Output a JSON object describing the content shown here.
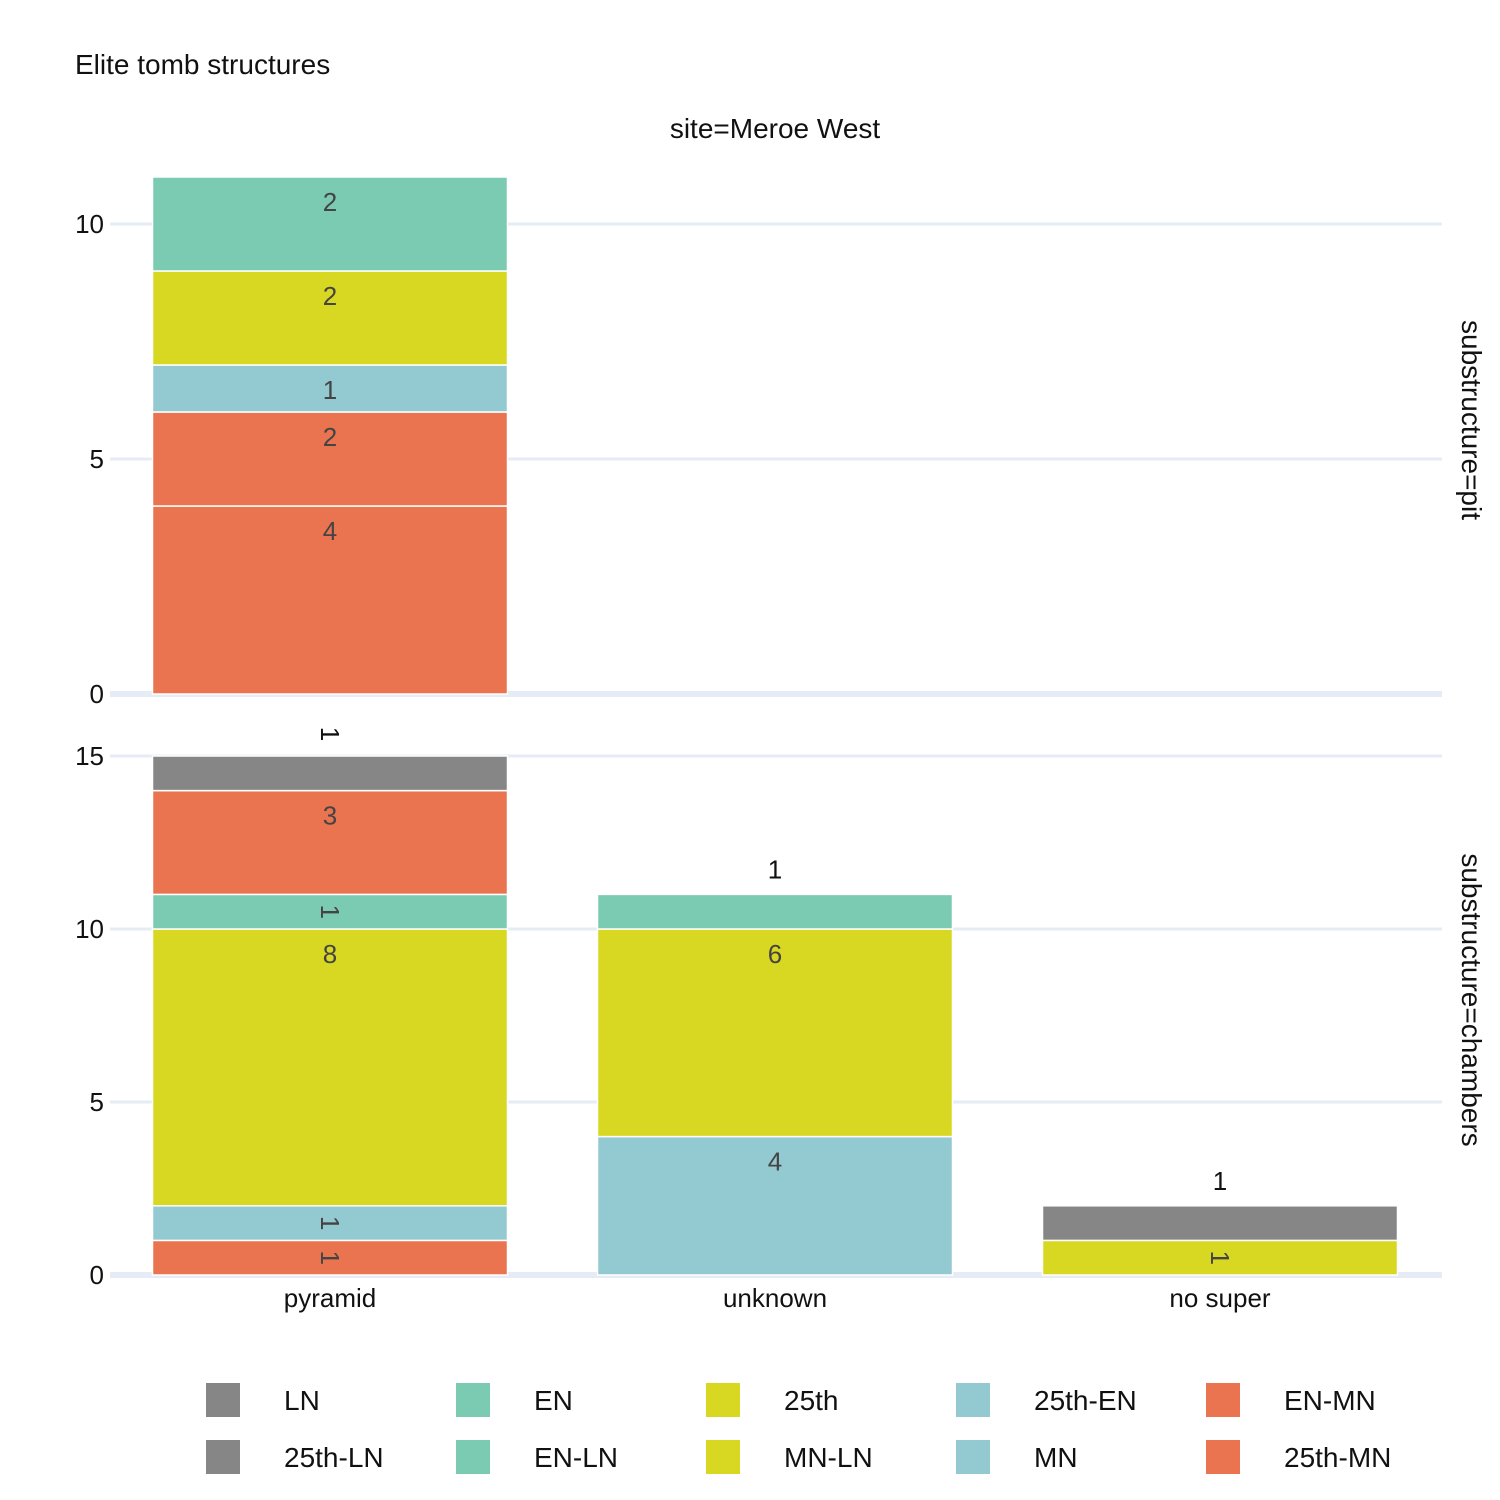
{
  "chart_data": {
    "type": "bar",
    "title": "Elite tomb structures",
    "column_facet": "site=Meroe West",
    "categories": [
      "pyramid",
      "unknown",
      "no super"
    ],
    "colors": {
      "LN": "#868686",
      "25th-LN": "#868686",
      "EN": "#7bcbb3",
      "EN-LN": "#7bcbb3",
      "25th": "#d8d823",
      "MN-LN": "#d8d823",
      "25th-EN": "#93c9d1",
      "MN": "#93c9d1",
      "EN-MN": "#ea744f",
      "25th-MN": "#ea744f"
    },
    "legend": [
      "LN",
      "EN",
      "25th",
      "25th-EN",
      "EN-MN",
      "25th-LN",
      "EN-LN",
      "MN-LN",
      "MN",
      "25th-MN"
    ],
    "panels": [
      {
        "label": "substructure=pit",
        "ylim": [
          0,
          11
        ],
        "yticks": [
          0,
          5,
          10
        ],
        "stacks": [
          {
            "category": "pyramid",
            "segments": [
              {
                "series": "25th-MN",
                "value": 4
              },
              {
                "series": "EN-MN",
                "value": 2
              },
              {
                "series": "MN",
                "value": 1
              },
              {
                "series": "25th",
                "value": 2
              },
              {
                "series": "EN",
                "value": 2
              }
            ]
          }
        ]
      },
      {
        "label": "substructure=chambers",
        "ylim": [
          0,
          15
        ],
        "yticks": [
          0,
          5,
          10,
          15
        ],
        "stacks": [
          {
            "category": "pyramid",
            "segments": [
              {
                "series": "25th-MN",
                "value": 1
              },
              {
                "series": "MN",
                "value": 1
              },
              {
                "series": "25th",
                "value": 8
              },
              {
                "series": "EN",
                "value": 1
              },
              {
                "series": "EN-MN",
                "value": 3
              },
              {
                "series": "LN",
                "value": 1
              }
            ]
          },
          {
            "category": "unknown",
            "segments": [
              {
                "series": "MN",
                "value": 4
              },
              {
                "series": "25th",
                "value": 6
              },
              {
                "series": "EN",
                "value": 1
              }
            ]
          },
          {
            "category": "no super",
            "segments": [
              {
                "series": "25th",
                "value": 1
              },
              {
                "series": "LN",
                "value": 1
              }
            ]
          }
        ]
      }
    ]
  }
}
